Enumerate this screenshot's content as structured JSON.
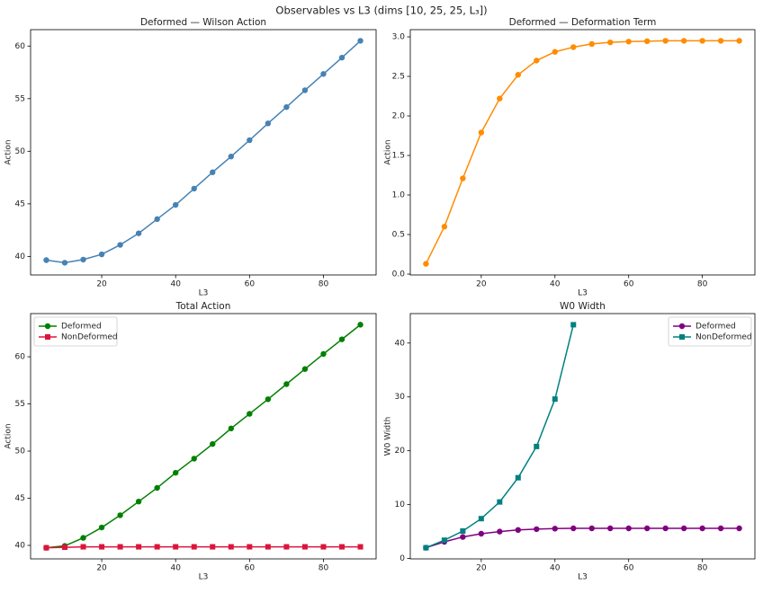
{
  "title": "Observables vs L3 (dims [10, 25, 25, L₃])",
  "chart_data": [
    {
      "type": "line",
      "title": "Deformed — Wilson Action",
      "x_label": "L3",
      "y_label": "Action",
      "x": [
        5,
        10,
        15,
        20,
        25,
        30,
        35,
        40,
        45,
        50,
        55,
        60,
        65,
        70,
        75,
        80,
        85,
        90
      ],
      "series": [
        {
          "color": "#4682b4",
          "marker": "circle",
          "values": [
            39.65,
            39.4,
            39.7,
            40.2,
            41.1,
            42.2,
            43.55,
            44.9,
            46.45,
            48.0,
            49.5,
            51.05,
            52.65,
            54.2,
            55.8,
            57.35,
            58.9,
            60.5
          ]
        }
      ],
      "xlim": [
        0.75,
        94.25
      ],
      "xticks": [
        20,
        40,
        60,
        80
      ],
      "ylim": [
        38.24,
        61.56
      ],
      "yticks": [
        40,
        45,
        50,
        55,
        60
      ]
    },
    {
      "type": "line",
      "title": "Deformed — Deformation Term",
      "x_label": "L3",
      "y_label": "Action",
      "x": [
        5,
        10,
        15,
        20,
        25,
        30,
        35,
        40,
        45,
        50,
        55,
        60,
        65,
        70,
        75,
        80,
        85,
        90
      ],
      "series": [
        {
          "color": "#ff8c00",
          "marker": "circle",
          "values": [
            0.13,
            0.6,
            1.21,
            1.79,
            2.22,
            2.52,
            2.7,
            2.81,
            2.87,
            2.91,
            2.93,
            2.94,
            2.945,
            2.95,
            2.95,
            2.95,
            2.95,
            2.95
          ]
        }
      ],
      "xlim": [
        0.75,
        94.25
      ],
      "xticks": [
        20,
        40,
        60,
        80
      ],
      "ylim": [
        -0.011,
        3.091
      ],
      "yticks": [
        {
          "value": 0,
          "label": "0.0"
        },
        0.5,
        {
          "value": 1,
          "label": "1.0"
        },
        1.5,
        {
          "value": 2,
          "label": "2.0"
        },
        2.5,
        {
          "value": 3,
          "label": "3.0"
        }
      ]
    },
    {
      "type": "line",
      "title": "Total Action",
      "x_label": "L3",
      "y_label": "Action",
      "legend": "upper left",
      "x": [
        5,
        10,
        15,
        20,
        25,
        30,
        35,
        40,
        45,
        50,
        55,
        60,
        65,
        70,
        75,
        80,
        85,
        90
      ],
      "series": [
        {
          "name": "Deformed",
          "color": "#008000",
          "marker": "circle",
          "values": [
            39.75,
            39.95,
            40.8,
            41.9,
            43.2,
            44.65,
            46.1,
            47.7,
            49.2,
            50.75,
            52.4,
            53.95,
            55.5,
            57.1,
            58.7,
            60.3,
            61.85,
            63.4
          ]
        },
        {
          "name": "NonDeformed",
          "color": "#dc143c",
          "marker": "square",
          "values": [
            39.75,
            39.8,
            39.85,
            39.85,
            39.85,
            39.85,
            39.85,
            39.85,
            39.85,
            39.85,
            39.85,
            39.85,
            39.85,
            39.85,
            39.85,
            39.85,
            39.85,
            39.85
          ]
        }
      ],
      "xlim": [
        0.75,
        94.25
      ],
      "xticks": [
        20,
        40,
        60,
        80
      ],
      "ylim": [
        38.57,
        64.58
      ],
      "yticks": [
        40,
        45,
        50,
        55,
        60
      ]
    },
    {
      "type": "line",
      "title": "W0 Width",
      "x_label": "L3",
      "y_label": "W0 Width",
      "legend": "upper right",
      "x": [
        5,
        10,
        15,
        20,
        25,
        30,
        35,
        40,
        45,
        50,
        55,
        60,
        65,
        70,
        75,
        80,
        85,
        90
      ],
      "series": [
        {
          "name": "Deformed",
          "color": "#800080",
          "marker": "circle",
          "values": [
            2.0,
            3.1,
            4.0,
            4.6,
            5.0,
            5.3,
            5.45,
            5.55,
            5.6,
            5.6,
            5.6,
            5.6,
            5.6,
            5.6,
            5.6,
            5.6,
            5.6,
            5.6
          ]
        },
        {
          "name": "NonDeformed",
          "color": "#008080",
          "marker": "square",
          "values": [
            2.0,
            3.4,
            5.1,
            7.4,
            10.5,
            15.0,
            20.8,
            29.6,
            43.4,
            null,
            null,
            null,
            null,
            null,
            null,
            null,
            null,
            null
          ]
        }
      ],
      "xlim": [
        0.75,
        94.25
      ],
      "xticks": [
        20,
        40,
        60,
        80
      ],
      "ylim": [
        -0.07,
        45.47
      ],
      "yticks": [
        0,
        10,
        20,
        30,
        40
      ]
    }
  ]
}
